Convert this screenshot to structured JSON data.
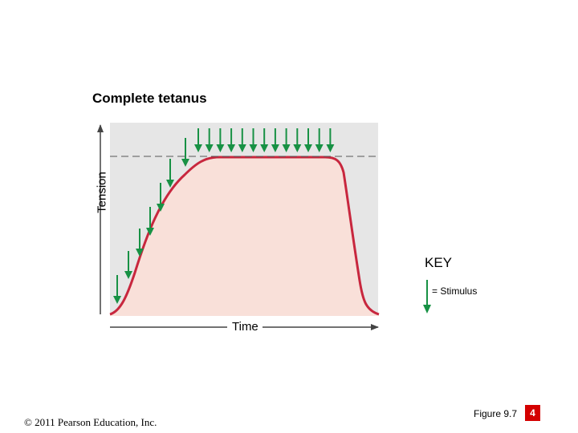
{
  "title": "Complete tetanus",
  "axes": {
    "y_label": "Tension",
    "x_label": "Time"
  },
  "key": {
    "title": "KEY",
    "stimulus_label": "= Stimulus"
  },
  "footer": {
    "copyright": "© 2011 Pearson Education, Inc.",
    "figure": "Figure 9.7",
    "page": "4"
  },
  "colors": {
    "curve": "#c8273e",
    "curve_fill": "#f9e0d9",
    "stimulus_arrow": "#179144",
    "plot_background": "#e6e6e6",
    "axis": "#444444",
    "badge": "#d40000"
  },
  "stimuli_count": 20,
  "plateau_dashed_line": true
}
